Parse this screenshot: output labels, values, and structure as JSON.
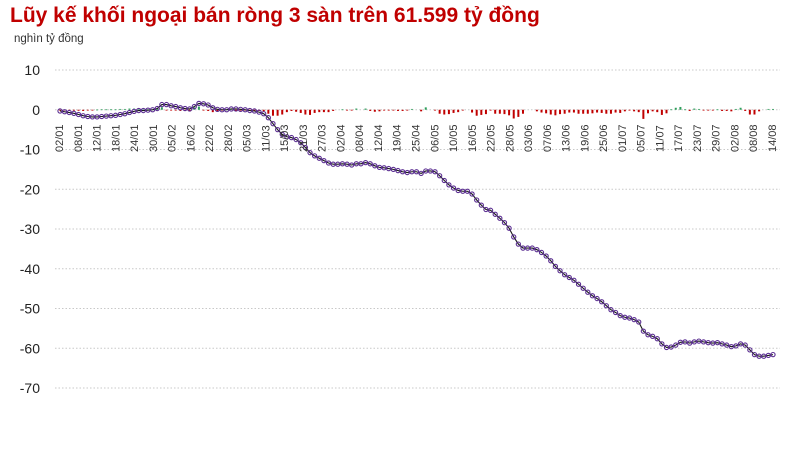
{
  "title": "Lũy kế khối ngoại bán ròng 3 sàn trên 61.599 tỷ đồng",
  "unit_label": "nghìn tỷ đồng",
  "chart_data": {
    "type": "line",
    "title": "Lũy kế khối ngoại bán ròng 3 sàn trên 61.599 tỷ đồng",
    "ylabel": "nghìn tỷ đồng",
    "xlabel": "",
    "ylim": [
      -70,
      10
    ],
    "yticks": [
      10,
      0,
      -10,
      -20,
      -30,
      -40,
      -50,
      -60,
      -70
    ],
    "grid": true,
    "x_tick_labels": [
      "02/01",
      "08/01",
      "12/01",
      "18/01",
      "24/01",
      "30/01",
      "05/02",
      "16/02",
      "22/02",
      "28/02",
      "05/03",
      "11/03",
      "15/03",
      "21/03",
      "27/03",
      "02/04",
      "08/04",
      "12/04",
      "19/04",
      "25/04",
      "06/05",
      "10/05",
      "16/05",
      "22/05",
      "28/05",
      "03/06",
      "07/06",
      "13/06",
      "19/06",
      "25/06",
      "01/07",
      "05/07",
      "11/07",
      "17/07",
      "23/07",
      "29/07",
      "02/08",
      "08/08",
      "14/08"
    ],
    "series": [
      {
        "type": "line",
        "color": "#5a2d91",
        "values": [
          -0.3,
          -0.5,
          -0.7,
          -0.9,
          -1.2,
          -1.5,
          -1.7,
          -1.8,
          -1.8,
          -1.7,
          -1.6,
          -1.5,
          -1.4,
          -1.2,
          -1.0,
          -0.7,
          -0.4,
          -0.2,
          -0.2,
          -0.1,
          0.0,
          0.3,
          1.3,
          1.3,
          1.0,
          0.8,
          0.5,
          0.3,
          0.2,
          0.8,
          1.6,
          1.5,
          1.2,
          0.5,
          0.1,
          0.0,
          0.0,
          0.2,
          0.2,
          0.1,
          0.0,
          -0.2,
          -0.3,
          -0.6,
          -1.0,
          -2.0,
          -3.5,
          -5.0,
          -6.2,
          -6.8,
          -7.0,
          -7.5,
          -8.3,
          -9.5,
          -10.8,
          -11.6,
          -12.2,
          -12.8,
          -13.4,
          -13.7,
          -13.7,
          -13.6,
          -13.7,
          -13.9,
          -13.6,
          -13.6,
          -13.3,
          -13.6,
          -14.1,
          -14.5,
          -14.6,
          -14.8,
          -15.0,
          -15.3,
          -15.6,
          -15.8,
          -15.6,
          -15.6,
          -16.0,
          -15.4,
          -15.4,
          -15.6,
          -16.6,
          -17.8,
          -18.9,
          -19.7,
          -20.3,
          -20.5,
          -20.5,
          -21.2,
          -22.7,
          -24.0,
          -25.1,
          -25.3,
          -26.3,
          -27.3,
          -28.4,
          -29.8,
          -32.0,
          -33.8,
          -34.8,
          -34.8,
          -34.8,
          -35.2,
          -35.9,
          -36.8,
          -38.0,
          -39.4,
          -40.5,
          -41.5,
          -42.2,
          -42.9,
          -43.9,
          -44.9,
          -45.9,
          -46.8,
          -47.5,
          -48.3,
          -49.3,
          -50.3,
          -51.0,
          -51.8,
          -52.2,
          -52.4,
          -52.8,
          -53.4,
          -55.7,
          -56.6,
          -57.0,
          -57.6,
          -58.9,
          -59.8,
          -59.7,
          -59.2,
          -58.5,
          -58.4,
          -58.7,
          -58.4,
          -58.2,
          -58.4,
          -58.6,
          -58.7,
          -58.6,
          -58.9,
          -59.2,
          -59.6,
          -59.4,
          -58.9,
          -59.2,
          -60.4,
          -61.6,
          -62.0,
          -62.0,
          -61.8,
          -61.599
        ]
      },
      {
        "type": "bar",
        "name": "",
        "positive_color": "#2e9e5b",
        "negative_color": "#c00000",
        "values": [
          -0.1,
          -0.15,
          -0.25,
          -0.2,
          -0.25,
          -0.3,
          -0.2,
          -0.12,
          0.05,
          0.1,
          0.1,
          0.1,
          0.1,
          0.2,
          0.2,
          0.3,
          0.3,
          0.1,
          0.05,
          0.1,
          0.1,
          0.3,
          0.6,
          -0.1,
          -0.2,
          -0.2,
          -0.3,
          -0.2,
          -0.1,
          0.6,
          0.8,
          -0.1,
          -0.3,
          -0.6,
          -0.4,
          -0.1,
          0.1,
          0.2,
          -0.1,
          -0.1,
          -0.1,
          -0.2,
          -0.1,
          -0.3,
          -0.4,
          -1.0,
          -1.5,
          -1.5,
          -1.2,
          -0.6,
          -0.3,
          -0.5,
          -0.8,
          -1.2,
          -1.3,
          -0.8,
          -0.6,
          -0.6,
          -0.6,
          -0.3,
          0.0,
          0.1,
          -0.1,
          -0.2,
          0.3,
          0.0,
          0.3,
          -0.3,
          -0.5,
          -0.4,
          -0.1,
          -0.2,
          -0.2,
          -0.3,
          -0.3,
          -0.2,
          0.2,
          0.0,
          -0.4,
          0.6,
          0.0,
          -0.2,
          -1.0,
          -1.2,
          -1.1,
          -0.8,
          -0.6,
          -0.2,
          0.0,
          -0.7,
          -1.5,
          -1.3,
          -1.1,
          -0.2,
          -1.0,
          -1.0,
          -1.1,
          -1.4,
          -2.2,
          -1.8,
          -1.0,
          0.0,
          0.0,
          -0.4,
          -0.7,
          -0.9,
          -1.2,
          -1.4,
          -1.1,
          -1.0,
          -0.7,
          -0.7,
          -1.0,
          -1.0,
          -1.0,
          -0.9,
          -0.7,
          -0.8,
          -1.0,
          -1.0,
          -0.7,
          -0.8,
          -0.4,
          -0.2,
          -0.4,
          -0.6,
          -2.3,
          -0.9,
          -0.4,
          -0.6,
          -1.3,
          -0.9,
          0.1,
          0.5,
          0.7,
          0.1,
          -0.3,
          0.3,
          0.2,
          -0.2,
          -0.2,
          -0.1,
          0.1,
          -0.3,
          -0.3,
          -0.4,
          0.2,
          0.5,
          -0.3,
          -1.2,
          -1.2,
          -0.4,
          0.0,
          0.2,
          0.2
        ]
      }
    ]
  }
}
